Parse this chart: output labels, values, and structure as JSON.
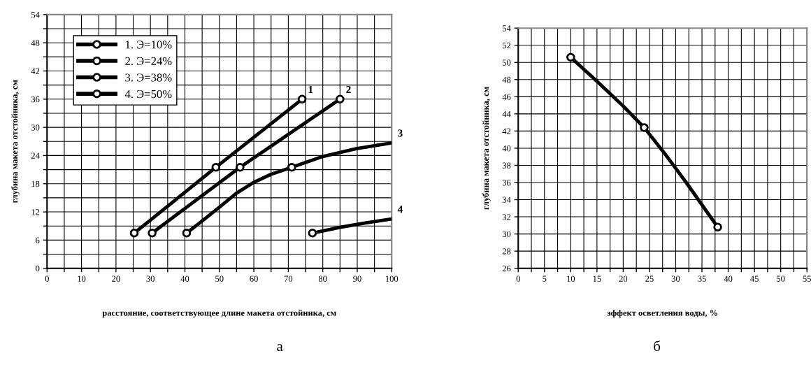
{
  "chart_data": [
    {
      "type": "line",
      "xlabel": "расстояние, соответствующее длине макета отстойника, см",
      "ylabel": "глубина макета отстойника, см",
      "xlim": [
        0,
        100
      ],
      "ylim": [
        0,
        54
      ],
      "xticks": [
        0,
        {
          "value": 5,
          "label": null
        },
        10,
        {
          "value": 15,
          "label": null
        },
        20,
        {
          "value": 25,
          "label": null
        },
        30,
        {
          "value": 35,
          "label": null
        },
        40,
        {
          "value": 45,
          "label": null
        },
        50,
        {
          "value": 55,
          "label": null
        },
        60,
        {
          "value": 65,
          "label": null
        },
        70,
        {
          "value": 75,
          "label": null
        },
        80,
        {
          "value": 85,
          "label": null
        },
        90,
        {
          "value": 95,
          "label": null
        },
        100
      ],
      "yticks": [
        0,
        {
          "value": 3,
          "label": null
        },
        6,
        {
          "value": 9,
          "label": null
        },
        12,
        {
          "value": 15,
          "label": null
        },
        18,
        {
          "value": 21,
          "label": null
        },
        24,
        {
          "value": 27,
          "label": null
        },
        30,
        {
          "value": 33,
          "label": null
        },
        36,
        {
          "value": 39,
          "label": null
        },
        42,
        {
          "value": 45,
          "label": null
        },
        48,
        {
          "value": 51,
          "label": null
        },
        54
      ],
      "grid": true,
      "legend": "top left",
      "line_style": "solid",
      "series": [
        {
          "name": "1. Э=10%",
          "color": "#000000",
          "marker": "circle",
          "x": [
            25.3,
            49,
            74
          ],
          "values": [
            7.5,
            21.5,
            36
          ]
        },
        {
          "name": "2. Э=24%",
          "color": "#000000",
          "marker": "circle",
          "x": [
            30.5,
            56,
            85
          ],
          "values": [
            7.5,
            21.5,
            36
          ]
        },
        {
          "name": "3. Э=38%",
          "color": "#000000",
          "marker": "none",
          "x": [
            40.5,
            44,
            50,
            55,
            60,
            65,
            71,
            80,
            90,
            100
          ],
          "values": [
            7.5,
            9.5,
            13,
            16,
            18.3,
            20,
            21.5,
            23.8,
            25.5,
            26.7
          ]
        },
        {
          "type": "scatter",
          "color": "#000000",
          "marker": "circle",
          "x": [
            40.5,
            71
          ],
          "values": [
            7.5,
            21.5
          ]
        },
        {
          "name": "4. Э=50%",
          "color": "#000000",
          "marker": "none",
          "x": [
            77,
            85,
            92,
            100
          ],
          "values": [
            7.5,
            8.7,
            9.6,
            10.5
          ]
        },
        {
          "type": "scatter",
          "color": "#000000",
          "marker": "circle",
          "x": [
            77
          ],
          "values": [
            7.5
          ]
        }
      ],
      "annotations": [
        {
          "text": "1",
          "x": 74,
          "y": 36
        },
        {
          "text": "2",
          "x": 85,
          "y": 36
        },
        {
          "text": "3",
          "x": 100,
          "y": 26.7
        },
        {
          "text": "4",
          "x": 100,
          "y": 10.5
        },
        "а"
      ]
    },
    {
      "type": "line",
      "xlabel": "эффект осветления воды, %",
      "ylabel": "глубина макета отстойника, см",
      "xlim": [
        0,
        55
      ],
      "ylim": [
        26,
        54
      ],
      "xticks": [
        0,
        {
          "value": 2.5,
          "label": null
        },
        5,
        {
          "value": 7.5,
          "label": null
        },
        10,
        {
          "value": 12.5,
          "label": null
        },
        15,
        {
          "value": 17.5,
          "label": null
        },
        20,
        {
          "value": 22.5,
          "label": null
        },
        25,
        {
          "value": 27.5,
          "label": null
        },
        30,
        {
          "value": 32.5,
          "label": null
        },
        35,
        {
          "value": 37.5,
          "label": null
        },
        40,
        {
          "value": 42.5,
          "label": null
        },
        45,
        {
          "value": 47.5,
          "label": null
        },
        50,
        {
          "value": 52.5,
          "label": null
        },
        55
      ],
      "yticks": [
        26,
        28,
        30,
        32,
        34,
        36,
        38,
        40,
        42,
        44,
        46,
        48,
        50,
        52,
        54
      ],
      "grid": true,
      "line_style": "solid",
      "series": [
        {
          "color": "#000000",
          "marker": "none",
          "x": [
            10,
            15,
            20,
            24,
            28,
            32,
            38
          ],
          "values": [
            50.6,
            47.8,
            44.9,
            42.4,
            39.3,
            36.0,
            30.8
          ]
        },
        {
          "type": "scatter",
          "color": "#000000",
          "marker": "circle",
          "x": [
            10,
            24,
            38
          ],
          "values": [
            50.6,
            42.4,
            30.8
          ]
        }
      ],
      "annotations": [
        "б"
      ]
    }
  ]
}
